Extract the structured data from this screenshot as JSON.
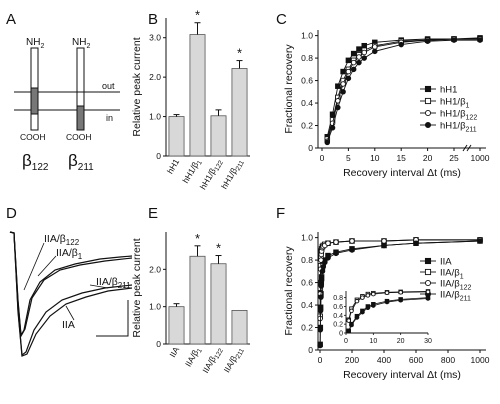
{
  "panels": {
    "A": {
      "letter": "A",
      "out_label": "out",
      "in_label": "in",
      "subunits": [
        {
          "n_term": "NH",
          "n_sub": "2",
          "c_term": "COOH",
          "name": "β",
          "name_sub": "122"
        },
        {
          "n_term": "NH",
          "n_sub": "2",
          "c_term": "COOH",
          "name": "β",
          "name_sub": "211"
        }
      ]
    },
    "D": {
      "letter": "D",
      "trace_labels": [
        {
          "main": "IIA/β",
          "sub": "122"
        },
        {
          "main": "IIA/β",
          "sub": "1"
        },
        {
          "main": "IIA/β",
          "sub": "211"
        },
        {
          "main": "IIA",
          "sub": ""
        }
      ]
    }
  },
  "chart_data": [
    {
      "panel": "B",
      "type": "bar",
      "title": "",
      "ylabel": "Relative peak current",
      "xlabel": "",
      "ylim": [
        0,
        3.5
      ],
      "yticks": [
        "0",
        "1.0",
        "2.0",
        "3.0"
      ],
      "categories": [
        "hH1",
        "hH1/β1",
        "hH1/β122",
        "hH1/β211"
      ],
      "values": [
        1.0,
        3.08,
        1.02,
        2.22
      ],
      "errors": [
        0.05,
        0.3,
        0.15,
        0.2
      ],
      "significant": [
        "",
        "*",
        "",
        "*"
      ]
    },
    {
      "panel": "C",
      "type": "line",
      "title": "",
      "xlabel": "Recovery interval Δt (ms)",
      "ylabel": "Fractional recovery",
      "xticks": [
        "0",
        "5",
        "10",
        "15",
        "20",
        "25",
        "1000"
      ],
      "yticks": [
        "0",
        "0.2",
        "0.4",
        "0.6",
        "0.8",
        "1.0"
      ],
      "ylim": [
        0,
        1.05
      ],
      "x": [
        1,
        2,
        3,
        4,
        5,
        6,
        7,
        8,
        10,
        15,
        20,
        25,
        1000
      ],
      "series": [
        {
          "name": "hH1",
          "sub": "",
          "marker": "filled-square",
          "values": [
            0.1,
            0.3,
            0.55,
            0.68,
            0.78,
            0.84,
            0.88,
            0.91,
            0.94,
            0.96,
            0.97,
            0.97,
            0.98
          ]
        },
        {
          "name": "hH1/β",
          "sub": "1",
          "marker": "open-square",
          "values": [
            0.08,
            0.25,
            0.45,
            0.6,
            0.7,
            0.78,
            0.83,
            0.87,
            0.91,
            0.95,
            0.96,
            0.97,
            0.97
          ]
        },
        {
          "name": "hH1/β",
          "sub": "122",
          "marker": "open-circle",
          "values": [
            0.06,
            0.22,
            0.42,
            0.57,
            0.68,
            0.76,
            0.81,
            0.85,
            0.9,
            0.94,
            0.96,
            0.97,
            0.97
          ]
        },
        {
          "name": "hH1/β",
          "sub": "211",
          "marker": "filled-circle",
          "values": [
            0.05,
            0.18,
            0.36,
            0.5,
            0.62,
            0.7,
            0.76,
            0.8,
            0.86,
            0.92,
            0.95,
            0.96,
            0.96
          ]
        }
      ]
    },
    {
      "panel": "E",
      "type": "bar",
      "title": "",
      "ylabel": "Relative peak current",
      "xlabel": "",
      "ylim": [
        0,
        3.0
      ],
      "yticks": [
        "0",
        "1.0",
        "2.0"
      ],
      "categories": [
        "IIA",
        "IIA/β1",
        "IIA/β122",
        "IIA/β211"
      ],
      "values": [
        1.0,
        2.35,
        2.15,
        0.9
      ],
      "errors": [
        0.08,
        0.28,
        0.22,
        0.0
      ],
      "significant": [
        "",
        "*",
        "*",
        ""
      ]
    },
    {
      "panel": "F",
      "type": "line",
      "title": "",
      "xlabel": "Recovery interval Δt (ms)",
      "ylabel": "Fractional recovery",
      "xticks": [
        "0",
        "200",
        "400",
        "600",
        "800",
        "1000"
      ],
      "yticks": [
        "0",
        "0.2",
        "0.4",
        "0.6",
        "0.8",
        "1.0"
      ],
      "ylim": [
        0,
        1.05
      ],
      "x": [
        1,
        2,
        4,
        6,
        8,
        10,
        15,
        20,
        30,
        50,
        100,
        200,
        400,
        600,
        1000
      ],
      "series": [
        {
          "name": "IIA",
          "sub": "",
          "marker": "filled-square",
          "values": [
            0.05,
            0.2,
            0.38,
            0.5,
            0.6,
            0.65,
            0.72,
            0.76,
            0.8,
            0.84,
            0.87,
            0.9,
            0.93,
            0.95,
            0.97
          ]
        },
        {
          "name": "IIA/β",
          "sub": "1",
          "marker": "open-square",
          "values": [
            0.3,
            0.55,
            0.75,
            0.83,
            0.88,
            0.9,
            0.92,
            0.93,
            0.94,
            0.95,
            0.96,
            0.97,
            0.97,
            0.98,
            0.98
          ]
        },
        {
          "name": "IIA/β",
          "sub": "122",
          "marker": "open-circle",
          "values": [
            0.28,
            0.5,
            0.72,
            0.8,
            0.85,
            0.88,
            0.91,
            0.92,
            0.93,
            0.95,
            0.96,
            0.97,
            0.97,
            0.98,
            0.98
          ]
        },
        {
          "name": "IIA/β",
          "sub": "211",
          "marker": "filled-circle",
          "values": [
            0.04,
            0.18,
            0.35,
            0.47,
            0.57,
            0.62,
            0.7,
            0.74,
            0.78,
            0.82,
            0.86,
            0.89,
            0.93,
            0.95,
            0.97
          ]
        }
      ],
      "inset": {
        "xticks": [
          "0",
          "10",
          "20",
          "30"
        ],
        "yticks": [
          "0",
          "0.2",
          "0.4",
          "0.6",
          "0.8"
        ],
        "xlim": [
          0,
          30
        ],
        "ylim": [
          0,
          0.95
        ]
      }
    }
  ]
}
